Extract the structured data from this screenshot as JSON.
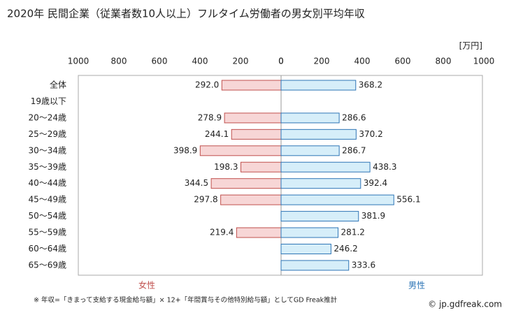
{
  "chart_data": {
    "type": "butterfly",
    "title": "2020年 民間企業（従業者数10人以上）フルタイム労働者の男女別平均年収",
    "unit": "[万円]",
    "categories": [
      "全体",
      "19歳以下",
      "20〜24歳",
      "25〜29歳",
      "30〜34歳",
      "35〜39歳",
      "40〜44歳",
      "45〜49歳",
      "50〜54歳",
      "55〜59歳",
      "60〜64歳",
      "65〜69歳"
    ],
    "series": [
      {
        "name": "女性",
        "side": "left",
        "color": "#f7d6d6",
        "stroke": "#c0504d",
        "label_color": "#c0504d",
        "values": [
          292.0,
          null,
          278.9,
          244.1,
          398.9,
          198.3,
          344.5,
          297.8,
          null,
          219.4,
          null,
          null
        ],
        "value_labels": [
          "292.0",
          null,
          "278.9",
          "244.1",
          "398.9",
          "198.3",
          "344.5",
          "297.8",
          null,
          "219.4",
          null,
          null
        ]
      },
      {
        "name": "男性",
        "side": "right",
        "color": "#d6eef9",
        "stroke": "#2e75b6",
        "label_color": "#2e75b6",
        "values": [
          368.2,
          null,
          286.6,
          370.2,
          286.7,
          438.3,
          392.4,
          556.1,
          381.9,
          281.2,
          246.2,
          333.6
        ],
        "value_labels": [
          "368.2",
          null,
          "286.6",
          "370.2",
          "286.7",
          "438.3",
          "392.4",
          "556.1",
          "381.9",
          "281.2",
          "246.2",
          "333.6"
        ]
      }
    ],
    "xlim": [
      0,
      1000
    ],
    "xticks": [
      0,
      200,
      400,
      600,
      800,
      1000
    ],
    "footnote": "※ 年収=「きまって支給する現金給与額」× 12+「年間賞与その他特別給与額」としてGD Freak推計",
    "copyright": "© jp.gdfreak.com"
  }
}
